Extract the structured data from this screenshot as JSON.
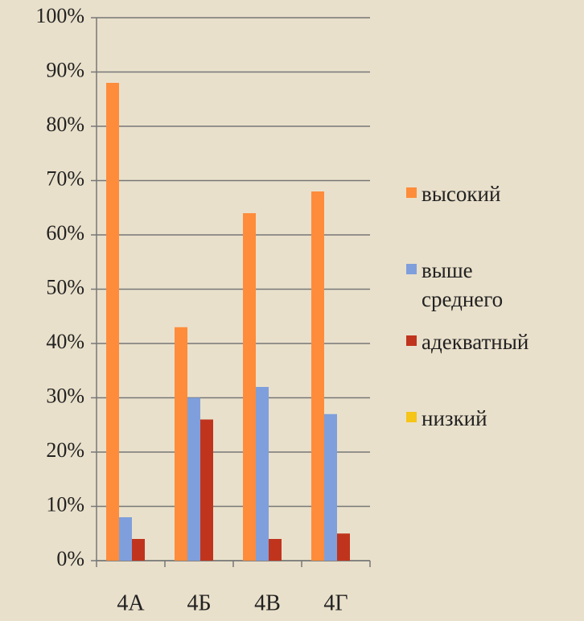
{
  "chart_data": {
    "type": "bar",
    "categories": [
      "4А",
      "4Б",
      "4В",
      "4Г"
    ],
    "series": [
      {
        "name": "высокий",
        "color": "#ff8c3a",
        "values": [
          88,
          43,
          64,
          68
        ]
      },
      {
        "name": "выше среднего",
        "color": "#7f9fdc",
        "values": [
          8,
          30,
          32,
          27
        ]
      },
      {
        "name": "адекватный",
        "color": "#c0341d",
        "values": [
          4,
          26,
          4,
          5
        ]
      },
      {
        "name": "низкий",
        "color": "#f5c518",
        "values": [
          0,
          0,
          0,
          0
        ]
      }
    ],
    "ylim": [
      0,
      100
    ],
    "yticks": [
      {
        "value": 0,
        "label": "0%"
      },
      {
        "value": 10,
        "label": "10%"
      },
      {
        "value": 20,
        "label": "20%"
      },
      {
        "value": 30,
        "label": "30%"
      },
      {
        "value": 40,
        "label": "40%"
      },
      {
        "value": 50,
        "label": "50%"
      },
      {
        "value": 60,
        "label": "60%"
      },
      {
        "value": 70,
        "label": "70%"
      },
      {
        "value": 80,
        "label": "80%"
      },
      {
        "value": 90,
        "label": "90%"
      },
      {
        "value": 100,
        "label": "100%"
      }
    ],
    "grid": true,
    "legend": "right"
  }
}
